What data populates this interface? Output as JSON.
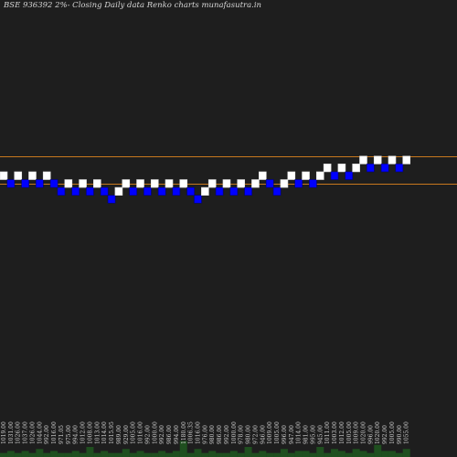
{
  "chart_data": {
    "type": "renko",
    "title": "BSE 936392  2%-  Closing Daily data Renko  charts munafasutra.in",
    "colors": {
      "background": "#1e1e1e",
      "up_brick": "#ffffff",
      "down_brick": "#0000ff",
      "reference_line": "#c8781e",
      "volume": "#1f4f1f"
    },
    "reference_levels": [
      1045.5,
      996.5
    ],
    "bricks": [
      {
        "dir": "up",
        "low": 1003,
        "high": 1017
      },
      {
        "dir": "down",
        "low": 989,
        "high": 1003
      },
      {
        "dir": "up",
        "low": 1003,
        "high": 1017
      },
      {
        "dir": "down",
        "low": 989,
        "high": 1003
      },
      {
        "dir": "up",
        "low": 1003,
        "high": 1017
      },
      {
        "dir": "down",
        "low": 989,
        "high": 1003
      },
      {
        "dir": "up",
        "low": 1003,
        "high": 1017
      },
      {
        "dir": "down",
        "low": 989,
        "high": 1003
      },
      {
        "dir": "down",
        "low": 975,
        "high": 989
      },
      {
        "dir": "up",
        "low": 989,
        "high": 1003
      },
      {
        "dir": "down",
        "low": 975,
        "high": 989
      },
      {
        "dir": "up",
        "low": 989,
        "high": 1003
      },
      {
        "dir": "down",
        "low": 975,
        "high": 989
      },
      {
        "dir": "up",
        "low": 989,
        "high": 1003
      },
      {
        "dir": "down",
        "low": 975,
        "high": 989
      },
      {
        "dir": "down",
        "low": 961,
        "high": 975
      },
      {
        "dir": "up",
        "low": 975,
        "high": 989
      },
      {
        "dir": "up",
        "low": 989,
        "high": 1003
      },
      {
        "dir": "down",
        "low": 975,
        "high": 989
      },
      {
        "dir": "up",
        "low": 989,
        "high": 1003
      },
      {
        "dir": "down",
        "low": 975,
        "high": 989
      },
      {
        "dir": "up",
        "low": 989,
        "high": 1003
      },
      {
        "dir": "down",
        "low": 975,
        "high": 989
      },
      {
        "dir": "up",
        "low": 989,
        "high": 1003
      },
      {
        "dir": "down",
        "low": 975,
        "high": 989
      },
      {
        "dir": "up",
        "low": 989,
        "high": 1003
      },
      {
        "dir": "down",
        "low": 975,
        "high": 989
      },
      {
        "dir": "down",
        "low": 961,
        "high": 975
      },
      {
        "dir": "up",
        "low": 975,
        "high": 989
      },
      {
        "dir": "up",
        "low": 989,
        "high": 1003
      },
      {
        "dir": "down",
        "low": 975,
        "high": 989
      },
      {
        "dir": "up",
        "low": 989,
        "high": 1003
      },
      {
        "dir": "down",
        "low": 975,
        "high": 989
      },
      {
        "dir": "up",
        "low": 989,
        "high": 1003
      },
      {
        "dir": "down",
        "low": 975,
        "high": 989
      },
      {
        "dir": "up",
        "low": 989,
        "high": 1003
      },
      {
        "dir": "up",
        "low": 1003,
        "high": 1017
      },
      {
        "dir": "down",
        "low": 989,
        "high": 1003
      },
      {
        "dir": "down",
        "low": 975,
        "high": 989
      },
      {
        "dir": "up",
        "low": 989,
        "high": 1003
      },
      {
        "dir": "up",
        "low": 1003,
        "high": 1017
      },
      {
        "dir": "down",
        "low": 989,
        "high": 1003
      },
      {
        "dir": "up",
        "low": 1003,
        "high": 1017
      },
      {
        "dir": "down",
        "low": 989,
        "high": 1003
      },
      {
        "dir": "up",
        "low": 1003,
        "high": 1017
      },
      {
        "dir": "up",
        "low": 1017,
        "high": 1031
      },
      {
        "dir": "down",
        "low": 1003,
        "high": 1017
      },
      {
        "dir": "up",
        "low": 1017,
        "high": 1031
      },
      {
        "dir": "down",
        "low": 1003,
        "high": 1017
      },
      {
        "dir": "up",
        "low": 1017,
        "high": 1031
      },
      {
        "dir": "up",
        "low": 1031,
        "high": 1045
      },
      {
        "dir": "down",
        "low": 1017,
        "high": 1031
      },
      {
        "dir": "up",
        "low": 1031,
        "high": 1045
      },
      {
        "dir": "down",
        "low": 1017,
        "high": 1031
      },
      {
        "dir": "up",
        "low": 1031,
        "high": 1045
      },
      {
        "dir": "down",
        "low": 1017,
        "high": 1031
      },
      {
        "dir": "up",
        "low": 1031,
        "high": 1045
      }
    ],
    "x_tick_labels": [
      "1019.00",
      "1031.00",
      "1026.00",
      "1037.00",
      "1026.00",
      "1044.00",
      "992.00",
      "1016.00",
      "971.05",
      "975.00",
      "994.00",
      "1012.00",
      "1008.00",
      "1013.00",
      "1014.00",
      "1015.95",
      "989.00",
      "929.00",
      "1005.00",
      "1016.00",
      "992.00",
      "1000.00",
      "992.00",
      "986.00",
      "994.00",
      "1180.00",
      "1006.35",
      "1016.00",
      "976.00",
      "980.00",
      "986.00",
      "992.00",
      "1000.00",
      "978.00",
      "980.00",
      "972.00",
      "946.00",
      "1009.00",
      "1005.00",
      "996.00",
      "947.00",
      "1014.00",
      "981.00",
      "995.00",
      "945.00",
      "1011.00",
      "1003.00",
      "1012.00",
      "1005.00",
      "1009.00",
      "1020.00",
      "996.00",
      "1020.00",
      "992.00",
      "1005.00",
      "990.00",
      "1055.00"
    ],
    "volume": [
      2,
      3,
      2,
      3,
      2,
      4,
      2,
      3,
      2,
      2,
      3,
      2,
      5,
      2,
      3,
      2,
      2,
      4,
      2,
      3,
      2,
      2,
      3,
      2,
      3,
      8,
      2,
      4,
      2,
      3,
      2,
      2,
      3,
      2,
      5,
      2,
      3,
      2,
      2,
      4,
      2,
      3,
      3,
      2,
      5,
      2,
      4,
      3,
      2,
      4,
      3,
      2,
      6,
      3,
      3,
      2,
      4
    ]
  }
}
